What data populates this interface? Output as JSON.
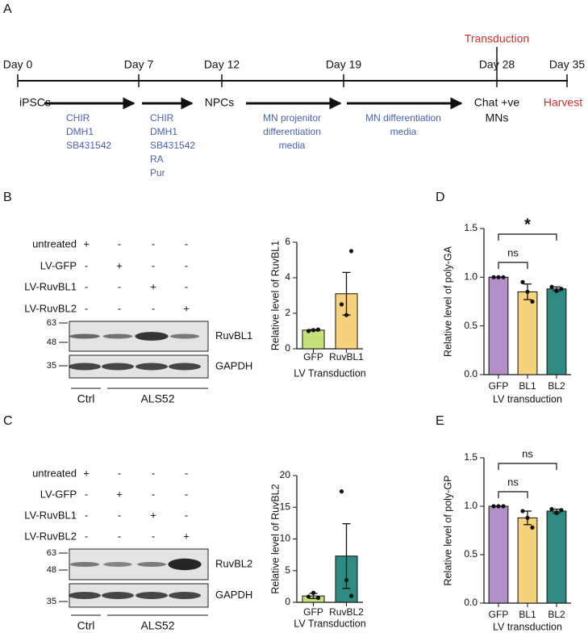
{
  "timeline": {
    "label": "A",
    "days": [
      "Day 0",
      "Day 7",
      "Day 12",
      "Day 19",
      "Day 28",
      "Day 35"
    ],
    "transduction": "Transduction",
    "stages": [
      "iPSCs",
      "NPCs",
      "Chat +ve",
      "MNs",
      "Harvest"
    ],
    "media": [
      [
        "CHIR",
        "DMH1",
        "SB431542"
      ],
      [
        "CHIR",
        "DMH1",
        "SB431542",
        "RA",
        "Pur"
      ],
      [
        "MN projenitor",
        "differentiation",
        "media"
      ],
      [
        "MN differentiation",
        "media"
      ]
    ]
  },
  "blots": [
    {
      "label": "B",
      "treatments": [
        {
          "name": "untreated",
          "signs": [
            "+",
            "-",
            "-",
            "-"
          ]
        },
        {
          "name": "LV-GFP",
          "signs": [
            "-",
            "+",
            "-",
            "-"
          ]
        },
        {
          "name": "LV-RuvBL1",
          "signs": [
            "-",
            "-",
            "+",
            "-"
          ]
        },
        {
          "name": "LV-RuvBL2",
          "signs": [
            "-",
            "-",
            "-",
            "+"
          ]
        }
      ],
      "markers": [
        "63",
        "48",
        "35"
      ],
      "bands": [
        "RuvBL1",
        "GAPDH"
      ],
      "groups": [
        "Ctrl",
        "ALS52"
      ]
    },
    {
      "label": "C",
      "treatments": [
        {
          "name": "untreated",
          "signs": [
            "+",
            "-",
            "-",
            "-"
          ]
        },
        {
          "name": "LV-GFP",
          "signs": [
            "-",
            "+",
            "-",
            "-"
          ]
        },
        {
          "name": "LV-RuvBL1",
          "signs": [
            "-",
            "-",
            "+",
            "-"
          ]
        },
        {
          "name": "LV-RuvBL2",
          "signs": [
            "-",
            "-",
            "-",
            "+"
          ]
        }
      ],
      "markers": [
        "63",
        "48",
        "35"
      ],
      "bands": [
        "RuvBL2",
        "GAPDH"
      ],
      "groups": [
        "Ctrl",
        "ALS52"
      ]
    }
  ],
  "chart_data": [
    {
      "type": "bar",
      "ylabel": "Relative level of RuvBL1",
      "xlabel": "LV Transduction",
      "categories": [
        "GFP",
        "RuvBL1"
      ],
      "values": [
        1.05,
        3.1
      ],
      "errors": [
        0.03,
        1.2
      ],
      "points": [
        [
          1.0,
          1.05,
          1.08
        ],
        [
          2.5,
          1.9,
          5.5
        ]
      ],
      "colors": [
        "#c5e17a",
        "#f6d27a"
      ],
      "ylim": [
        0,
        6
      ],
      "yticks": [
        0,
        2,
        4,
        6
      ]
    },
    {
      "type": "bar",
      "ylabel": "Relative level of RuvBL2",
      "xlabel": "LV Transduction",
      "categories": [
        "GFP",
        "RuvBL2"
      ],
      "values": [
        1.0,
        7.3
      ],
      "errors": [
        0.4,
        5.1
      ],
      "points": [
        [
          0.9,
          1.5,
          0.7
        ],
        [
          17.5,
          3.5,
          1.0
        ]
      ],
      "colors": [
        "#c5e17a",
        "#2e8b84"
      ],
      "ylim": [
        0,
        20
      ],
      "yticks": [
        0,
        5,
        10,
        15,
        20
      ]
    },
    {
      "type": "bar",
      "label": "D",
      "ylabel": "Relative level of poly-GA",
      "xlabel": "LV transduction",
      "categories": [
        "GFP",
        "BL1",
        "BL2"
      ],
      "values": [
        1.0,
        0.85,
        0.88
      ],
      "errors": [
        0,
        0.08,
        0.02
      ],
      "points": [
        [
          1,
          1,
          1
        ],
        [
          0.95,
          0.85,
          0.75
        ],
        [
          0.9,
          0.86,
          0.88
        ]
      ],
      "colors": [
        "#b48ec9",
        "#f6d27a",
        "#2e8b84"
      ],
      "ylim": [
        0,
        1.5
      ],
      "yticks": [
        {
          "value": 0,
          "label": "0.0"
        },
        0.5,
        {
          "value": 1,
          "label": "1.0"
        },
        1.5
      ],
      "comparisons": [
        {
          "label": "ns",
          "between": [
            "GFP",
            "BL1"
          ]
        },
        {
          "label": "*",
          "between": [
            "GFP",
            "BL2"
          ]
        }
      ]
    },
    {
      "type": "bar",
      "label": "E",
      "ylabel": "Relative level of poly-GP",
      "xlabel": "LV transduction",
      "categories": [
        "GFP",
        "BL1",
        "BL2"
      ],
      "values": [
        1.0,
        0.88,
        0.95
      ],
      "errors": [
        0,
        0.07,
        0.02
      ],
      "points": [
        [
          1,
          1,
          1
        ],
        [
          0.95,
          0.88,
          0.78
        ],
        [
          0.97,
          0.93,
          0.96
        ]
      ],
      "colors": [
        "#b48ec9",
        "#f6d27a",
        "#2e8b84"
      ],
      "ylim": [
        0,
        1.5
      ],
      "yticks": [
        {
          "value": 0,
          "label": "0.0"
        },
        0.5,
        {
          "value": 1,
          "label": "1.0"
        },
        1.5
      ],
      "comparisons": [
        {
          "label": "ns",
          "between": [
            "GFP",
            "BL1"
          ]
        },
        {
          "label": "ns",
          "between": [
            "GFP",
            "BL2"
          ]
        }
      ]
    }
  ]
}
